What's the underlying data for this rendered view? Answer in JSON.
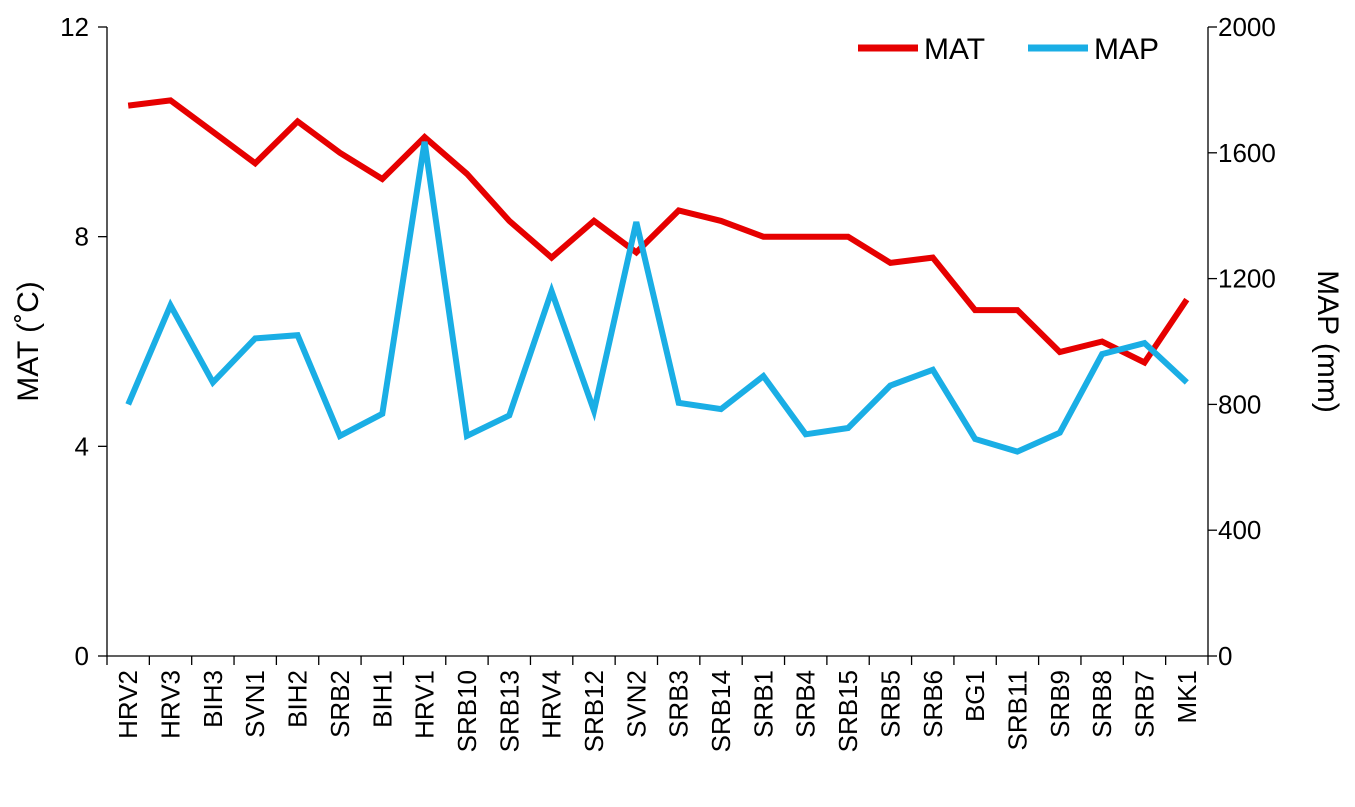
{
  "chart_data": {
    "type": "line",
    "categories": [
      "HRV2",
      "HRV3",
      "BIH3",
      "SVN1",
      "BIH2",
      "SRB2",
      "BIH1",
      "HRV1",
      "SRB10",
      "SRB13",
      "HRV4",
      "SRB12",
      "SVN2",
      "SRB3",
      "SRB14",
      "SRB1",
      "SRB4",
      "SRB15",
      "SRB5",
      "SRB6",
      "BG1",
      "SRB11",
      "SRB9",
      "SRB8",
      "SRB7",
      "MK1"
    ],
    "series": [
      {
        "name": "MAT",
        "axis": "left",
        "color": "#e60000",
        "values": [
          10.5,
          10.6,
          10.0,
          9.4,
          10.2,
          9.6,
          9.1,
          9.9,
          9.2,
          8.3,
          7.6,
          8.3,
          7.7,
          8.5,
          8.3,
          8.0,
          8.0,
          8.0,
          7.5,
          7.6,
          6.6,
          6.6,
          5.8,
          6.0,
          5.6,
          6.8
        ]
      },
      {
        "name": "MAP",
        "axis": "right",
        "color": "#1aaee5",
        "values": [
          800,
          1115,
          870,
          1010,
          1020,
          700,
          770,
          1635,
          700,
          765,
          1160,
          780,
          1380,
          805,
          785,
          890,
          705,
          725,
          860,
          910,
          690,
          650,
          710,
          960,
          995,
          870
        ]
      }
    ],
    "ylabel_left": "MAT (˚C)",
    "ylabel_right": "MAP (mm)",
    "ylim_left": [
      0,
      12
    ],
    "yticks_left": [
      0,
      4,
      8,
      12
    ],
    "ylim_right": [
      0,
      2000
    ],
    "yticks_right": [
      0,
      400,
      800,
      1200,
      1600,
      2000
    ],
    "grid": false,
    "legend_position": "top-right"
  }
}
